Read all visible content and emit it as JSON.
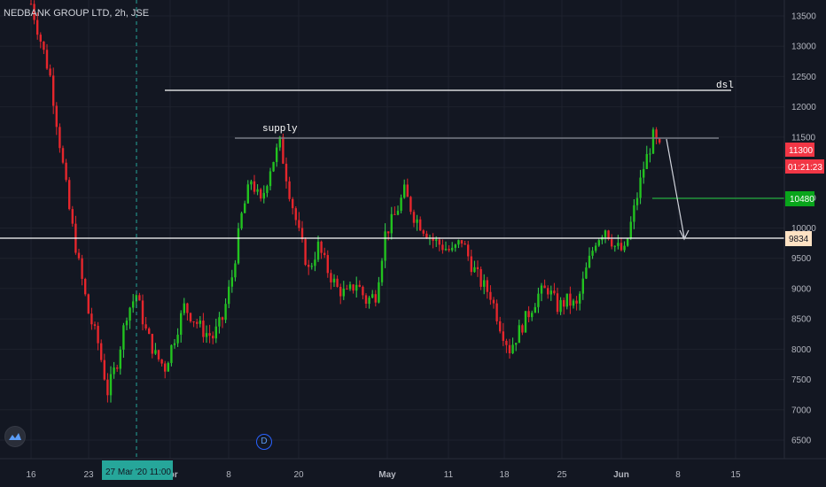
{
  "header": {
    "symbol_title": "NEDBANK GROUP LTD, 2h, JSE"
  },
  "chart_data": {
    "type": "candlestick",
    "price_axis": {
      "ticks": [
        "13500",
        "13000",
        "12500",
        "12000",
        "11500",
        "11000",
        "10500",
        "10000",
        "9500",
        "9000",
        "8500",
        "8000",
        "7500",
        "7000",
        "6500"
      ],
      "ylim": [
        6200,
        13800
      ]
    },
    "time_axis": {
      "ticks": [
        "16",
        "23",
        "Apr",
        "8",
        "20",
        "May",
        "11",
        "18",
        "25",
        "Jun",
        "8",
        "15"
      ],
      "cursor_label": "27 Mar '20   11:00"
    },
    "badges": {
      "last_price": "11300",
      "countdown": "01:21:23",
      "green_level": "10480",
      "horizontal_line": "9834"
    },
    "annotations": {
      "supply": "supply",
      "dsl": "dsl"
    },
    "price_path": [
      [
        0,
        13700
      ],
      [
        3,
        13100
      ],
      [
        6,
        12500
      ],
      [
        9,
        11400
      ],
      [
        12,
        10300
      ],
      [
        15,
        9400
      ],
      [
        18,
        8600
      ],
      [
        21,
        8100
      ],
      [
        24,
        7300
      ],
      [
        27,
        7800
      ],
      [
        30,
        8600
      ],
      [
        33,
        8900
      ],
      [
        36,
        8300
      ],
      [
        39,
        7900
      ],
      [
        42,
        7700
      ],
      [
        45,
        8200
      ],
      [
        48,
        8700
      ],
      [
        51,
        8500
      ],
      [
        54,
        8300
      ],
      [
        57,
        8200
      ],
      [
        60,
        8500
      ],
      [
        63,
        9200
      ],
      [
        66,
        10200
      ],
      [
        69,
        10800
      ],
      [
        72,
        10400
      ],
      [
        75,
        11000
      ],
      [
        78,
        11400
      ],
      [
        81,
        10600
      ],
      [
        84,
        9900
      ],
      [
        87,
        9300
      ],
      [
        90,
        9700
      ],
      [
        93,
        9300
      ],
      [
        96,
        9000
      ],
      [
        99,
        8900
      ],
      [
        102,
        9100
      ],
      [
        105,
        8800
      ],
      [
        108,
        8900
      ],
      [
        111,
        9900
      ],
      [
        114,
        10200
      ],
      [
        117,
        10600
      ],
      [
        120,
        10200
      ],
      [
        123,
        10000
      ],
      [
        126,
        9800
      ],
      [
        129,
        9700
      ],
      [
        132,
        9600
      ],
      [
        135,
        9800
      ],
      [
        138,
        9400
      ],
      [
        141,
        9100
      ],
      [
        144,
        8900
      ],
      [
        147,
        8400
      ],
      [
        150,
        8000
      ],
      [
        153,
        8300
      ],
      [
        156,
        8600
      ],
      [
        159,
        8900
      ],
      [
        162,
        9000
      ],
      [
        165,
        8700
      ],
      [
        168,
        8800
      ],
      [
        171,
        8700
      ],
      [
        174,
        9300
      ],
      [
        177,
        9800
      ],
      [
        180,
        10000
      ],
      [
        183,
        9700
      ],
      [
        186,
        9600
      ],
      [
        189,
        10300
      ],
      [
        192,
        11000
      ],
      [
        195,
        11500
      ],
      [
        198,
        11200
      ]
    ],
    "colors": {
      "background": "#131722",
      "up": "#26a69a",
      "up_wick": "#32d74b",
      "up_body": "#22c21f",
      "down_body": "#e5262c",
      "grid": "#1e222d",
      "axis_text": "#b2b5be",
      "white_line": "#ffffff",
      "supply_line": "#787b86",
      "green_line": "#22ab3e",
      "cursor_line": "#26a69a",
      "badge_red": "#f23645",
      "badge_green": "#09a51b",
      "badge_cream": "#ffe2c4"
    }
  }
}
